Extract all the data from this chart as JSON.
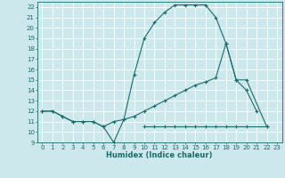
{
  "xlabel": "Humidex (Indice chaleur)",
  "xlim": [
    -0.5,
    23.5
  ],
  "ylim": [
    9,
    22.5
  ],
  "yticks": [
    9,
    10,
    11,
    12,
    13,
    14,
    15,
    16,
    17,
    18,
    19,
    20,
    21,
    22
  ],
  "xticks": [
    0,
    1,
    2,
    3,
    4,
    5,
    6,
    7,
    8,
    9,
    10,
    11,
    12,
    13,
    14,
    15,
    16,
    17,
    18,
    19,
    20,
    21,
    22,
    23
  ],
  "bg_color": "#cce8ec",
  "line_color": "#1a6b6b",
  "grid_color": "#ffffff",
  "line1_x": [
    0,
    1,
    2,
    3,
    4,
    5,
    6,
    7,
    8,
    9,
    10,
    11,
    12,
    13,
    14,
    15,
    16,
    17,
    18,
    19,
    20,
    21
  ],
  "line1_y": [
    12.0,
    12.0,
    11.5,
    11.0,
    11.0,
    11.0,
    10.5,
    9.0,
    11.2,
    15.5,
    19.0,
    20.5,
    21.5,
    22.2,
    22.2,
    22.2,
    22.2,
    21.0,
    18.5,
    15.0,
    14.0,
    12.0
  ],
  "line2_x": [
    0,
    1,
    2,
    3,
    4,
    5,
    6,
    7,
    8,
    9,
    10,
    11,
    12,
    13,
    14,
    15,
    16,
    17,
    18,
    19,
    20,
    22
  ],
  "line2_y": [
    12.0,
    12.0,
    11.5,
    11.0,
    11.0,
    11.0,
    10.5,
    11.0,
    11.2,
    11.5,
    12.0,
    12.5,
    13.0,
    13.5,
    14.0,
    14.5,
    14.8,
    15.2,
    18.5,
    15.0,
    15.0,
    10.5
  ],
  "line3_x": [
    10,
    11,
    12,
    13,
    14,
    15,
    16,
    17,
    18,
    19,
    20,
    22
  ],
  "line3_y": [
    10.5,
    10.5,
    10.5,
    10.5,
    10.5,
    10.5,
    10.5,
    10.5,
    10.5,
    10.5,
    10.5,
    10.5
  ]
}
